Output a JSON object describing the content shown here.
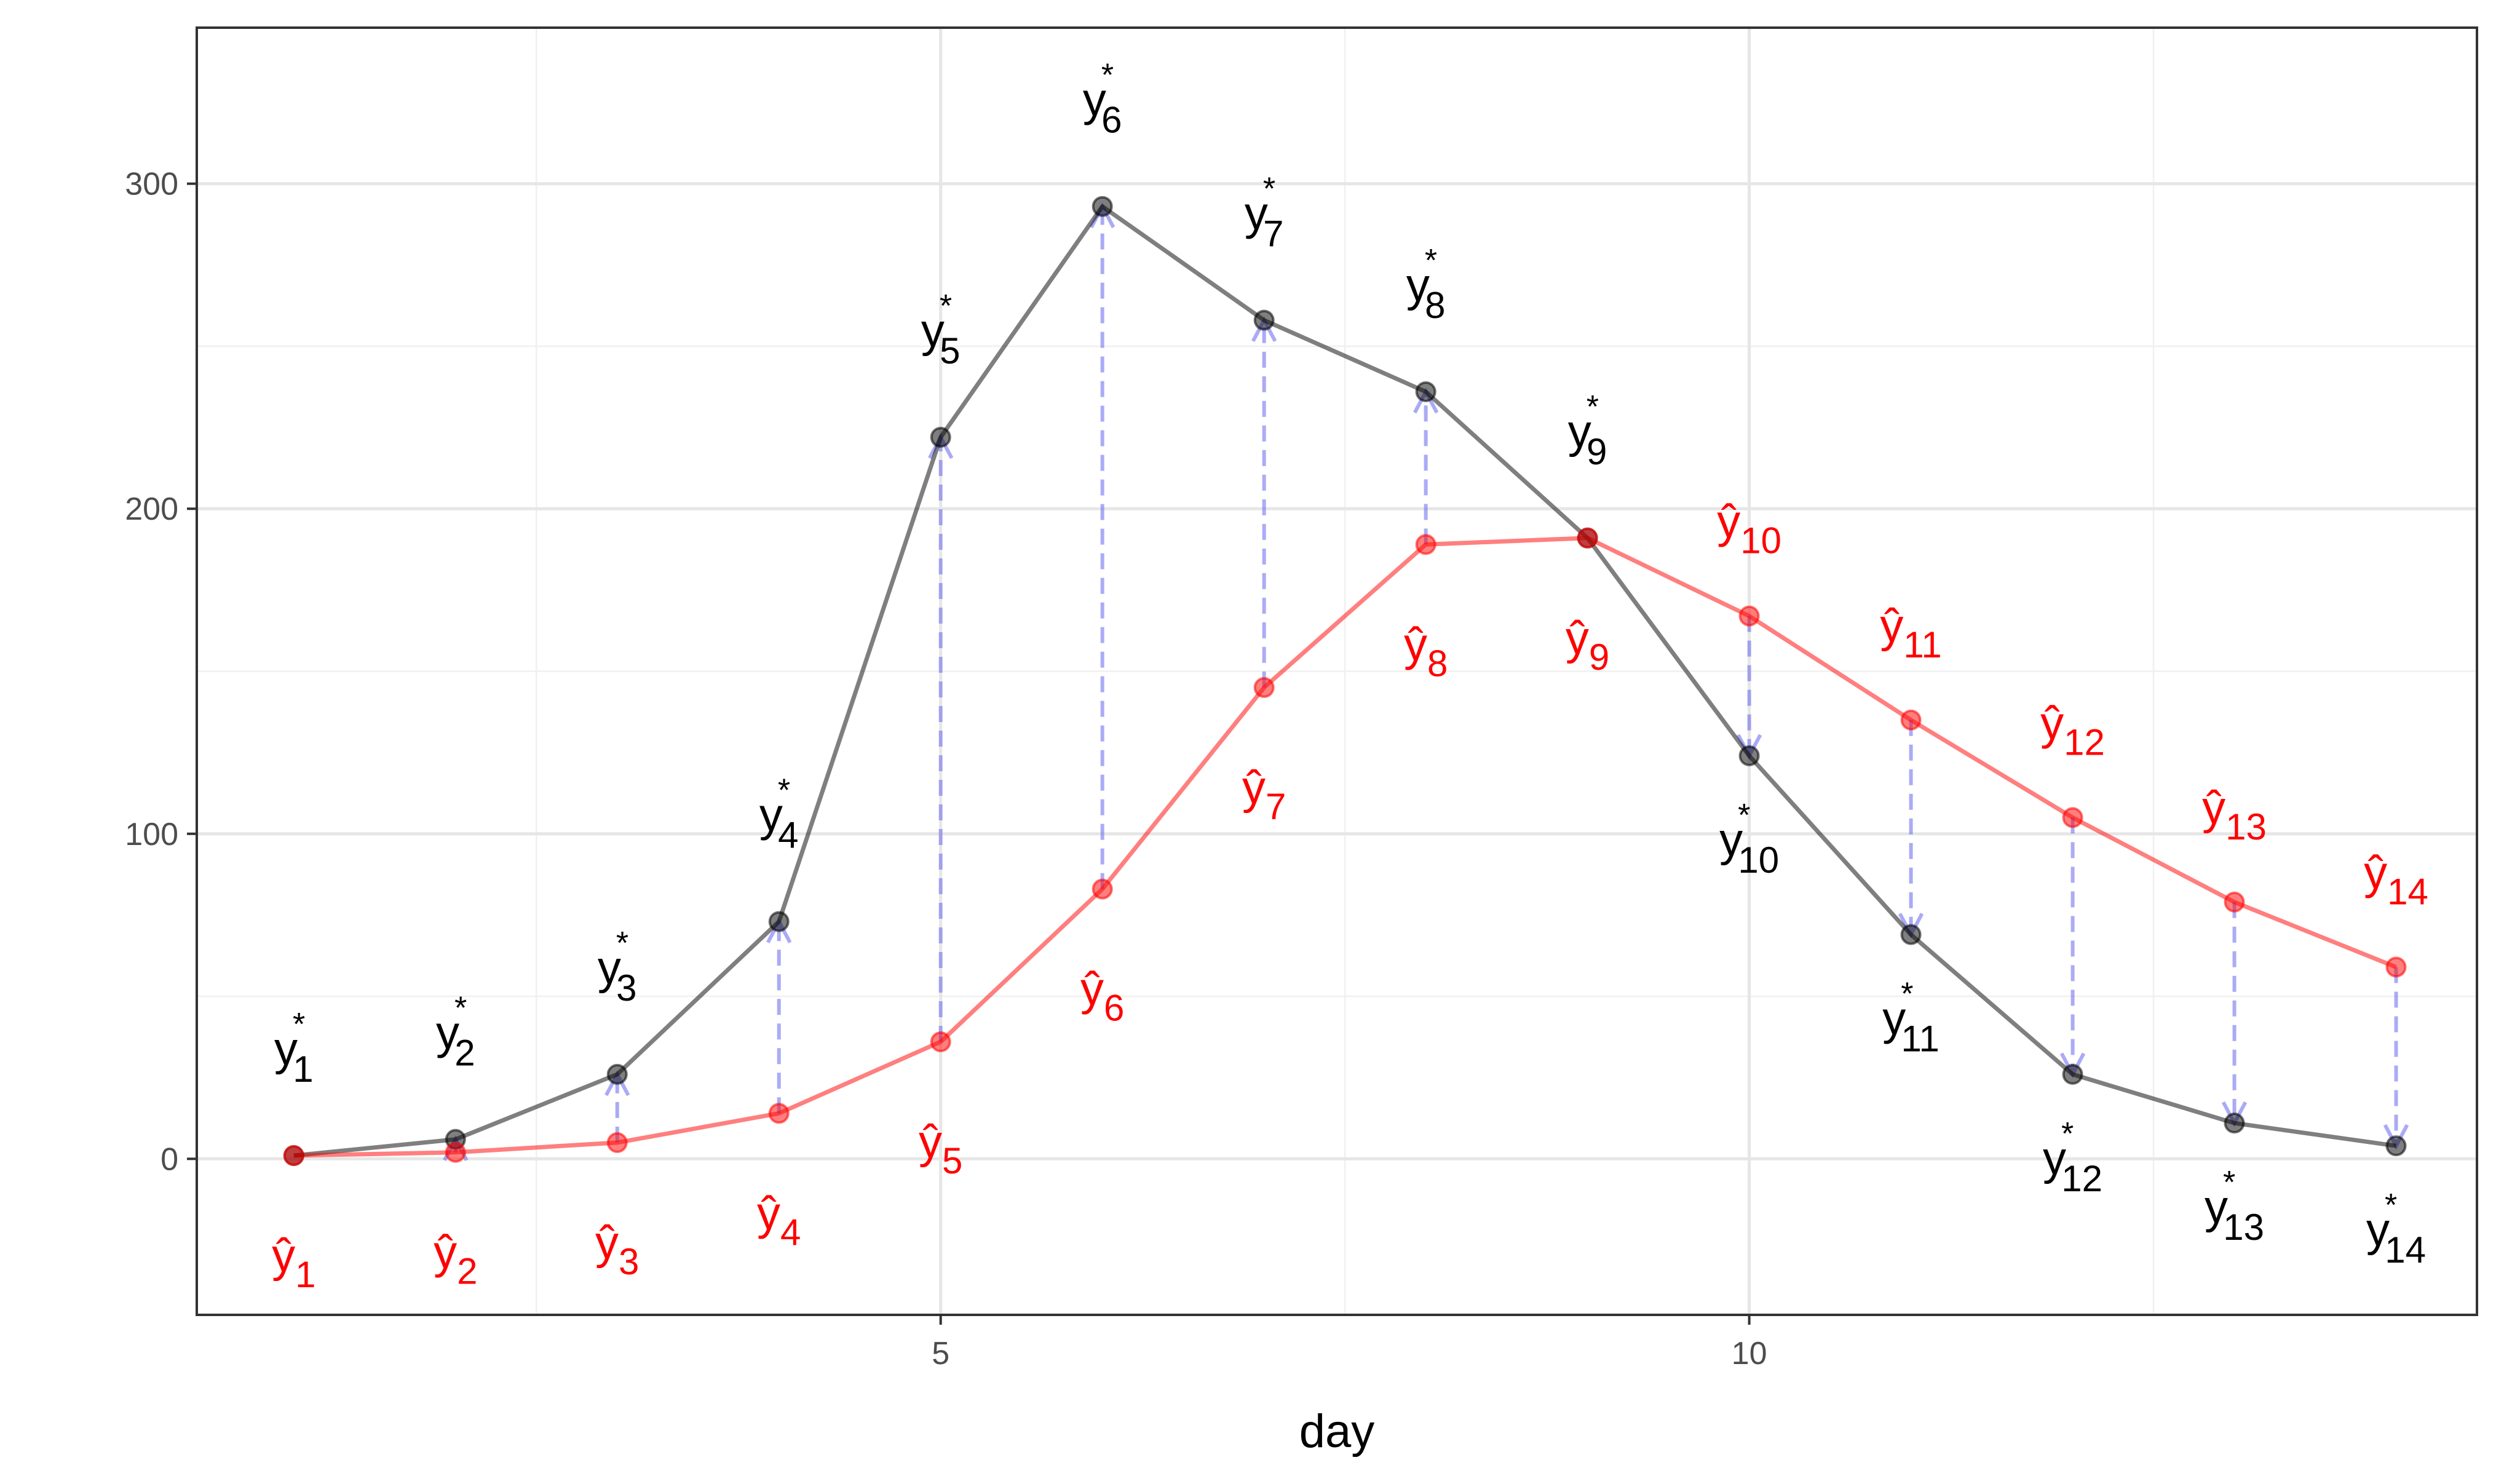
{
  "chart_data": {
    "type": "line",
    "title": "",
    "xlabel": "day",
    "ylabel": "",
    "xlim": [
      0.4,
      14.5
    ],
    "ylim": [
      -48,
      348
    ],
    "x_ticks": [
      5,
      10
    ],
    "x_tick_labels": [
      "5",
      "10"
    ],
    "x_minor_ticks": [
      2.5,
      7.5,
      12.5
    ],
    "y_ticks": [
      0,
      100,
      200,
      300
    ],
    "y_tick_labels": [
      "0",
      "100",
      "200",
      "300"
    ],
    "y_minor_ticks": [
      50,
      150,
      250
    ],
    "grid": true,
    "legend": "none",
    "x": [
      1,
      2,
      3,
      4,
      5,
      6,
      7,
      8,
      9,
      10,
      11,
      12,
      13,
      14
    ],
    "series": [
      {
        "key": "observed",
        "color": "#000000",
        "values": [
          1,
          6,
          26,
          73,
          222,
          293,
          258,
          236,
          191,
          124,
          69,
          26,
          11,
          4
        ],
        "labels": [
          "y",
          "y",
          "y",
          "y",
          "y",
          "y",
          "y",
          "y",
          "y",
          "y",
          "y",
          "y",
          "y",
          "y"
        ],
        "label_superscript": "*",
        "label_subscripts": [
          "1",
          "2",
          "3",
          "4",
          "5",
          "6",
          "7",
          "8",
          "9",
          "10",
          "11",
          "12",
          "13",
          "14"
        ]
      },
      {
        "key": "fitted",
        "color": "#ff0000",
        "values": [
          1,
          2,
          5,
          14,
          36,
          83,
          145,
          189,
          191,
          167,
          135,
          105,
          79,
          59
        ],
        "labels": [
          "ŷ",
          "ŷ",
          "ŷ",
          "ŷ",
          "ŷ",
          "ŷ",
          "ŷ",
          "ŷ",
          "ŷ",
          "ŷ",
          "ŷ",
          "ŷ",
          "ŷ",
          "ŷ"
        ],
        "label_subscripts": [
          "1",
          "2",
          "3",
          "4",
          "5",
          "6",
          "7",
          "8",
          "9",
          "10",
          "11",
          "12",
          "13",
          "14"
        ]
      }
    ],
    "arrows": {
      "color": "#6666ee",
      "style": "dashed",
      "direction": "fitted-to-observed"
    },
    "colors": {
      "panel_border": "#333333",
      "grid_major": "#e6e6e6",
      "grid_minor": "#f0f0f0"
    }
  }
}
